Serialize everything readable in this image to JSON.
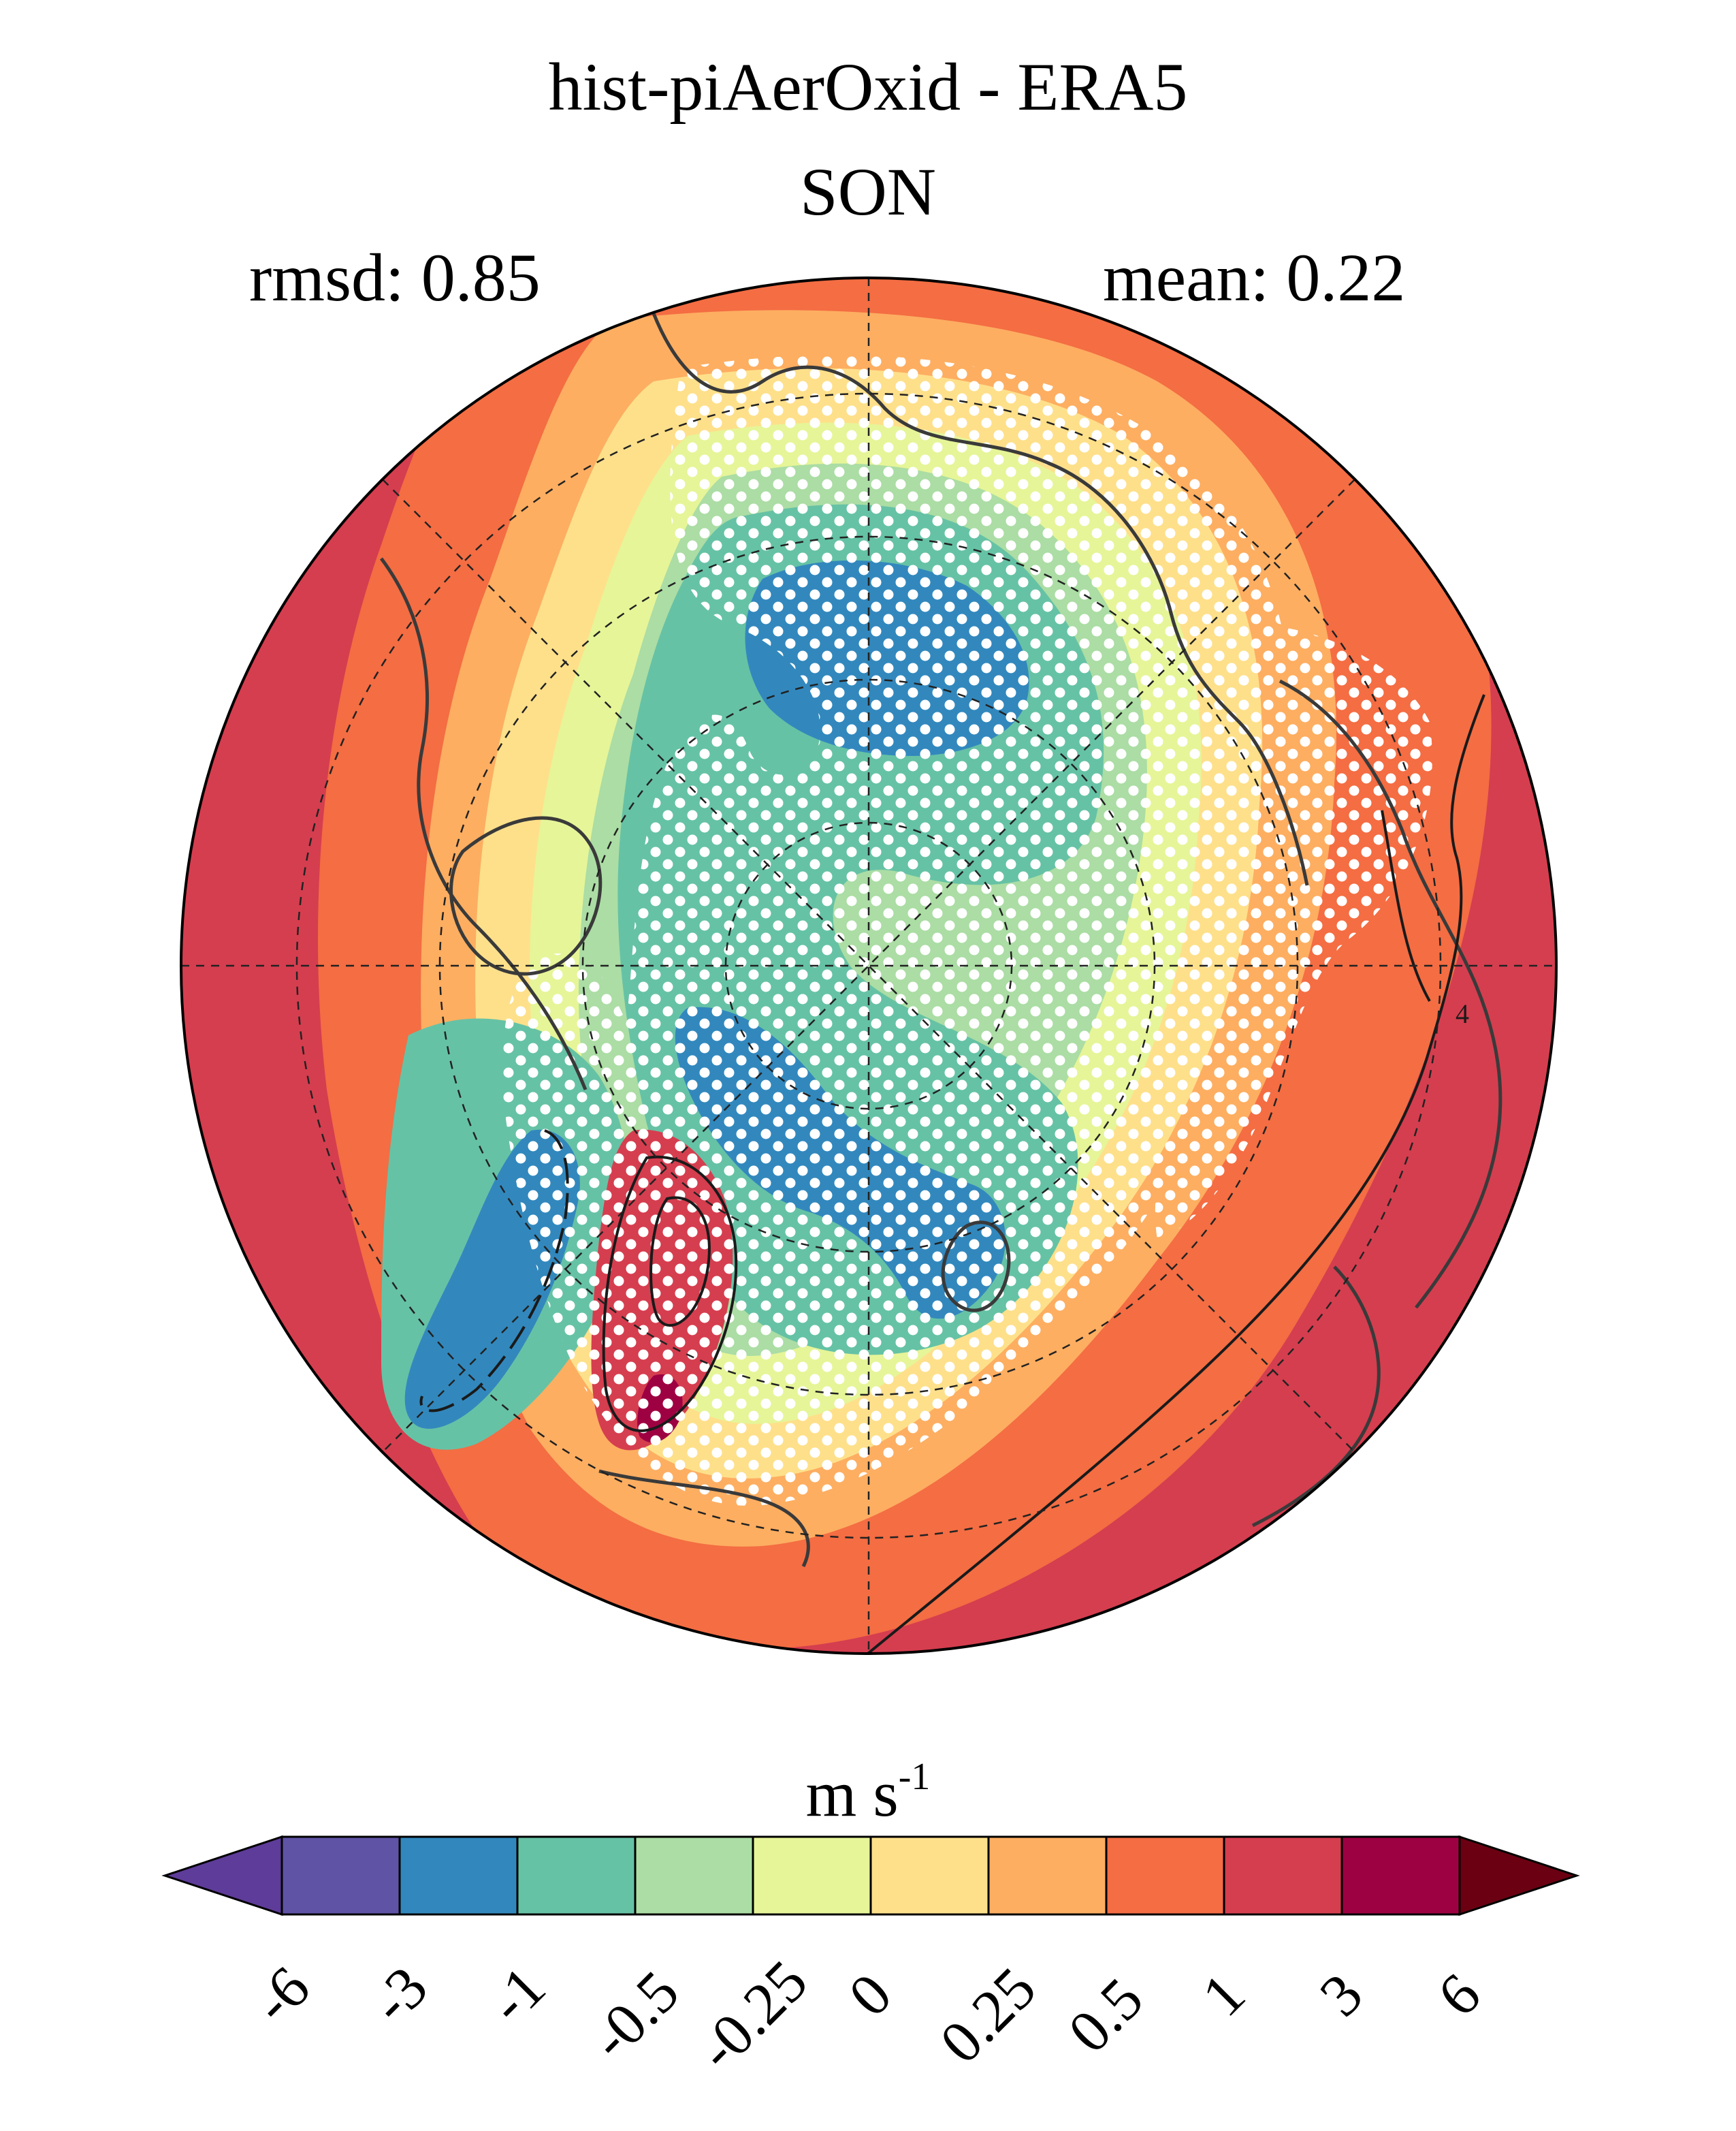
{
  "title": "hist-piAerOxid - ERA5",
  "subtitle": "SON",
  "stats": {
    "rmsd": "rmsd: 0.85",
    "mean": "mean: 0.22"
  },
  "colorbar": {
    "units_base": "m s",
    "units_exp": "-1",
    "ticks": [
      "-6",
      "-3",
      "-1",
      "-0.5",
      "-0.25",
      "0",
      "0.25",
      "0.5",
      "1",
      "3",
      "6"
    ],
    "colors": [
      "#5e3c99",
      "#5f53a6",
      "#3288bd",
      "#66c2a5",
      "#abdda4",
      "#e6f598",
      "#fee08b",
      "#fdae61",
      "#f46d43",
      "#d53e4f",
      "#9e0142",
      "#6b0012"
    ]
  },
  "contour_label": "4"
}
